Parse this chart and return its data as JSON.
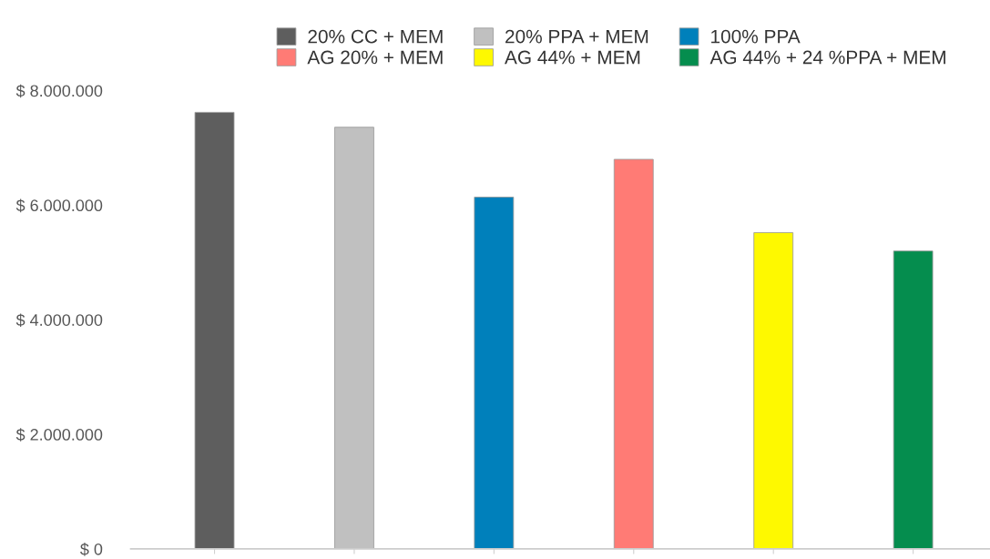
{
  "chart_data": {
    "type": "bar",
    "categories": [
      null,
      null,
      null,
      null,
      null,
      null
    ],
    "series": [
      {
        "name": "20% CC + MEM",
        "color": "#5e5e5e",
        "values": [
          7620000,
          null,
          null,
          null,
          null,
          null
        ]
      },
      {
        "name": "20% PPA + MEM",
        "color": "#c0c0c0",
        "values": [
          null,
          7360000,
          null,
          null,
          null,
          null
        ]
      },
      {
        "name": "100% PPA",
        "color": "#0080bb",
        "values": [
          null,
          null,
          6140000,
          null,
          null,
          null
        ]
      },
      {
        "name": "AG 20% + MEM",
        "color": "#ff7b75",
        "values": [
          null,
          null,
          null,
          6800000,
          null,
          null
        ]
      },
      {
        "name": "AG 44% + MEM",
        "color": "#fef900",
        "values": [
          null,
          null,
          null,
          null,
          5520000,
          null
        ]
      },
      {
        "name": "AG 44% + 24 %PPA + MEM",
        "color": "#058d4e",
        "values": [
          null,
          null,
          null,
          null,
          null,
          5200000
        ]
      }
    ],
    "ylim": [
      0,
      8000000
    ],
    "yticks": [
      {
        "value": 0,
        "label": "$ 0"
      },
      {
        "value": 2000000,
        "label": "$ 2.000.000"
      },
      {
        "value": 4000000,
        "label": "$ 4.000.000"
      },
      {
        "value": 6000000,
        "label": "$ 6.000.000"
      },
      {
        "value": 8000000,
        "label": "$ 8.000.000"
      }
    ],
    "grid": false,
    "legend": "top"
  }
}
